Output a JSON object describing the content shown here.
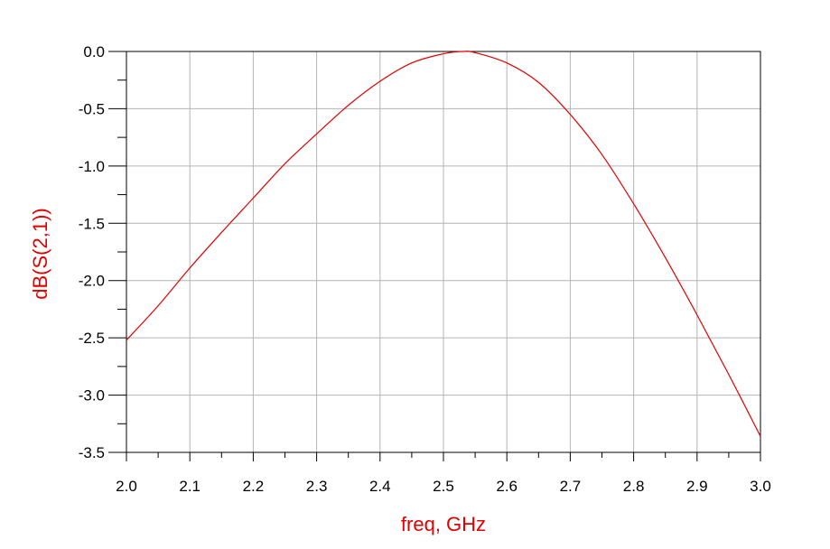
{
  "chart_data": {
    "type": "line",
    "title": "",
    "xlabel": "freq, GHz",
    "ylabel": "dB(S(2,1))",
    "xlim": [
      2.0,
      3.0
    ],
    "ylim": [
      -3.5,
      0.0
    ],
    "x_ticks": [
      "2.0",
      "2.1",
      "2.2",
      "2.3",
      "2.4",
      "2.5",
      "2.6",
      "2.7",
      "2.8",
      "2.9",
      "3.0"
    ],
    "y_ticks": [
      "0.0",
      "-0.5",
      "-1.0",
      "-1.5",
      "-2.0",
      "-2.5",
      "-3.0",
      "-3.5"
    ],
    "grid": true,
    "colors": {
      "series": "#e00000",
      "axis_title": "#e00000",
      "grid": "#b4b4b4",
      "frame": "#000000"
    },
    "series": [
      {
        "name": "",
        "x": [
          2.0,
          2.05,
          2.1,
          2.15,
          2.2,
          2.25,
          2.3,
          2.35,
          2.4,
          2.45,
          2.5,
          2.53,
          2.55,
          2.6,
          2.65,
          2.7,
          2.75,
          2.8,
          2.85,
          2.9,
          2.95,
          3.0
        ],
        "y": [
          -2.52,
          -2.22,
          -1.89,
          -1.58,
          -1.28,
          -0.98,
          -0.72,
          -0.47,
          -0.26,
          -0.1,
          -0.02,
          0.0,
          -0.01,
          -0.1,
          -0.27,
          -0.55,
          -0.9,
          -1.33,
          -1.8,
          -2.3,
          -2.82,
          -3.36
        ]
      }
    ]
  }
}
